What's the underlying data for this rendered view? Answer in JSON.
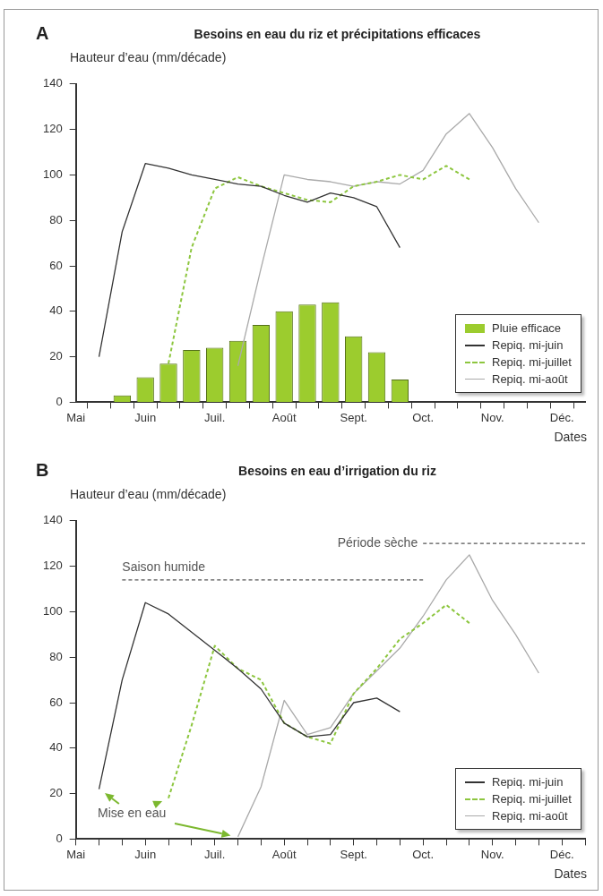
{
  "chart_data": [
    {
      "type": "line",
      "title": "Besoins en eau du riz et précipitations efficaces",
      "ylabel": "Hauteur d’eau (mm/décade)",
      "xlabel": "Dates",
      "annotations": [
        "A"
      ],
      "categories": [
        "Mai",
        null,
        null,
        "Juin",
        null,
        null,
        "Juil.",
        null,
        null,
        "Août",
        null,
        null,
        "Sept.",
        null,
        null,
        "Oct.",
        null,
        null,
        "Nov.",
        null,
        null,
        "Déc.",
        null
      ],
      "ylim": [
        0,
        140
      ],
      "yticks": [
        0,
        20,
        40,
        60,
        80,
        100,
        120,
        140
      ],
      "legend": "bottom right",
      "marker": "none",
      "series": [
        {
          "name": "Pluie efficace",
          "type": "bar",
          "color": "#9ccc2e",
          "values": [
            null,
            null,
            3,
            11,
            17,
            23,
            24,
            27,
            34,
            40,
            43,
            44,
            29,
            22,
            10,
            null,
            null,
            null,
            null,
            null,
            null,
            null,
            null
          ]
        },
        {
          "name": "Repiq. mi-juin",
          "color": "#333333",
          "values": [
            null,
            20,
            75,
            105,
            103,
            100,
            98,
            96,
            95,
            91,
            88,
            92,
            90,
            86,
            68,
            null,
            null,
            null,
            null,
            null,
            null,
            null,
            null
          ]
        },
        {
          "name": "Repiq. mi-juillet",
          "color": "#8dc63f",
          "line_style": "dashed",
          "values": [
            null,
            null,
            null,
            null,
            17,
            68,
            94,
            99,
            95,
            92,
            89,
            88,
            95,
            97,
            100,
            98,
            104,
            98,
            null,
            null,
            null,
            null,
            null
          ]
        },
        {
          "name": "Repiq. mi-août",
          "color": "#aaaaaa",
          "values": [
            null,
            null,
            null,
            null,
            null,
            null,
            null,
            16,
            59,
            100,
            98,
            97,
            95,
            97,
            96,
            102,
            118,
            127,
            112,
            94,
            79,
            null,
            null
          ]
        }
      ]
    },
    {
      "type": "line",
      "title": "Besoins en eau d’irrigation du riz",
      "ylabel": "Hauteur d’eau (mm/décade)",
      "xlabel": "Dates",
      "annotations": [
        "B",
        "Mise en eau"
      ],
      "categories": [
        "Mai",
        null,
        null,
        "Juin",
        null,
        null,
        "Juil.",
        null,
        null,
        "Août",
        null,
        null,
        "Sept.",
        null,
        null,
        "Oct.",
        null,
        null,
        "Nov.",
        null,
        null,
        "Déc.",
        null
      ],
      "ylim": [
        0,
        140
      ],
      "yticks": [
        0,
        20,
        40,
        60,
        80,
        100,
        120,
        140
      ],
      "legend": "bottom right",
      "marker": "none",
      "series": [
        {
          "name": "Repiq. mi-juin",
          "color": "#333333",
          "values": [
            null,
            22,
            70,
            104,
            99,
            91,
            83,
            75,
            66,
            51,
            45,
            46,
            60,
            62,
            56,
            null,
            null,
            null,
            null,
            null,
            null,
            null,
            null
          ]
        },
        {
          "name": "Repiq. mi-juillet",
          "color": "#8dc63f",
          "line_style": "dashed",
          "values": [
            null,
            null,
            null,
            null,
            18,
            50,
            85,
            75,
            70,
            51,
            45,
            42,
            64,
            75,
            88,
            95,
            103,
            95,
            null,
            null,
            null,
            null,
            null
          ]
        },
        {
          "name": "Repiq. mi-août",
          "color": "#aaaaaa",
          "values": [
            null,
            null,
            null,
            null,
            null,
            null,
            null,
            1,
            23,
            61,
            46,
            49,
            64,
            74,
            84,
            98,
            114,
            125,
            105,
            90,
            73,
            null,
            null
          ]
        },
        {
          "name": "Saison humide",
          "type": "line",
          "color": "#555555",
          "line_style": "dashed",
          "values": [
            null,
            null,
            114,
            114,
            114,
            114,
            114,
            114,
            114,
            114,
            114,
            114,
            114,
            114,
            114,
            114,
            null,
            null,
            null,
            null,
            null,
            null,
            null
          ]
        },
        {
          "name": "Période sèche",
          "type": "line",
          "color": "#555555",
          "line_style": "dashed",
          "values": [
            null,
            null,
            null,
            null,
            null,
            null,
            null,
            null,
            null,
            null,
            null,
            null,
            null,
            null,
            null,
            130,
            130,
            130,
            130,
            130,
            130,
            130,
            130
          ]
        }
      ]
    }
  ]
}
